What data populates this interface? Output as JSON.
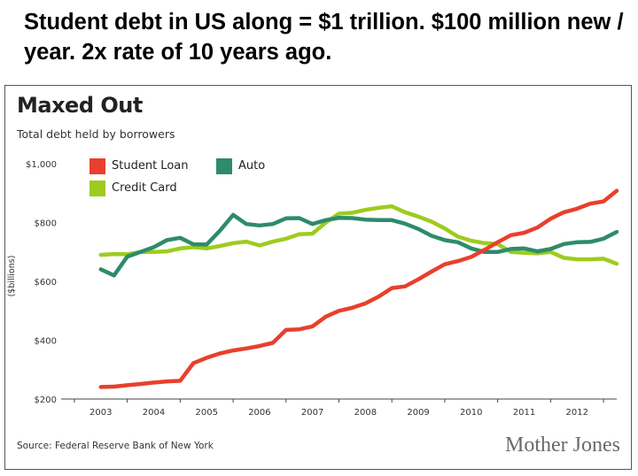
{
  "slide": {
    "title": "Student debt in US along = $1 trillion. $100 million new / year. 2x rate of 10 years ago."
  },
  "chart_data": {
    "type": "line",
    "title": "Maxed Out",
    "subtitle": "Total debt held by borrowers",
    "ylabel": "($billions)",
    "xlabel": "",
    "ylim": [
      200,
      1000
    ],
    "yticks": [
      200,
      400,
      600,
      800,
      1000
    ],
    "ytick_labels": [
      "$200",
      "$400",
      "$600",
      "$800",
      "$1,000"
    ],
    "xlim": [
      2002.25,
      2012.75
    ],
    "xticks": [
      2003,
      2004,
      2005,
      2006,
      2007,
      2008,
      2009,
      2010,
      2011,
      2012
    ],
    "xtick_labels": [
      "2003",
      "2004",
      "2005",
      "2006",
      "2007",
      "2008",
      "2009",
      "2010",
      "2011",
      "2012"
    ],
    "grid": false,
    "legend": "top-left",
    "source": "Source: Federal Reserve Bank of New York",
    "brand": "Mother Jones",
    "x": [
      2003.0,
      2003.25,
      2003.5,
      2003.75,
      2004.0,
      2004.25,
      2004.5,
      2004.75,
      2005.0,
      2005.25,
      2005.5,
      2005.75,
      2006.0,
      2006.25,
      2006.5,
      2006.75,
      2007.0,
      2007.25,
      2007.5,
      2007.75,
      2008.0,
      2008.25,
      2008.5,
      2008.75,
      2009.0,
      2009.25,
      2009.5,
      2009.75,
      2010.0,
      2010.25,
      2010.5,
      2010.75,
      2011.0,
      2011.25,
      2011.5,
      2011.75,
      2012.0,
      2012.25,
      2012.5,
      2012.75
    ],
    "series": [
      {
        "name": "Student Loan",
        "color": "#e8402c",
        "values": [
          241,
          242,
          247,
          251,
          256,
          260,
          262,
          322,
          340,
          355,
          365,
          372,
          380,
          391,
          435,
          437,
          447,
          480,
          500,
          510,
          525,
          548,
          577,
          583,
          607,
          633,
          658,
          669,
          683,
          707,
          733,
          757,
          765,
          783,
          813,
          835,
          847,
          864,
          872,
          908
        ]
      },
      {
        "name": "Auto",
        "color": "#2e8b6b",
        "values": [
          641,
          620,
          684,
          700,
          716,
          740,
          748,
          726,
          725,
          772,
          826,
          795,
          790,
          795,
          814,
          815,
          795,
          808,
          816,
          815,
          810,
          808,
          808,
          796,
          778,
          755,
          740,
          733,
          712,
          700,
          700,
          710,
          712,
          702,
          710,
          727,
          733,
          734,
          745,
          768
        ]
      },
      {
        "name": "Credit Card",
        "color": "#9dcc1e",
        "values": [
          690,
          693,
          692,
          700,
          700,
          702,
          712,
          716,
          712,
          720,
          730,
          735,
          722,
          735,
          745,
          760,
          762,
          800,
          830,
          833,
          843,
          850,
          855,
          835,
          820,
          803,
          780,
          752,
          738,
          730,
          727,
          700,
          697,
          695,
          700,
          680,
          675,
          675,
          677,
          660
        ]
      }
    ]
  }
}
